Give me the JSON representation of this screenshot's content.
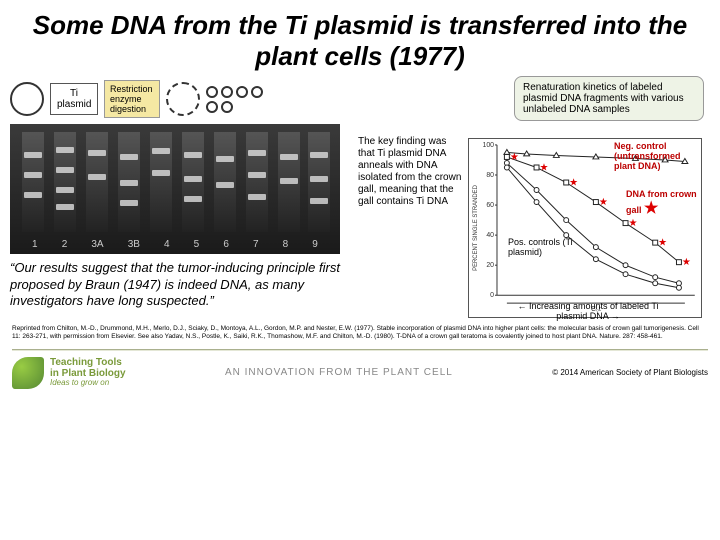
{
  "title": "Some DNA from the Ti plasmid is transferred into the plant cells (1977)",
  "left_panel": {
    "plasmid_label": "Ti plasmid",
    "restriction_label": "Restriction enzyme digestion",
    "gel": {
      "lane_labels": [
        "1",
        "2",
        "3A",
        "3B",
        "4",
        "5",
        "6",
        "7",
        "8",
        "9"
      ]
    },
    "quote": "“Our results suggest that the tumor-inducing principle first proposed by Braun (1947) is indeed DNA, as many investigators have long suspected.”"
  },
  "right_panel": {
    "renaturation_box": "Renaturation kinetics of labeled plasmid DNA fragments with various unlabeled DNA samples",
    "key_finding": "The key finding was that Ti plasmid DNA anneals with DNA isolated from the crown gall, meaning that the gall contains Ti DNA",
    "chart": {
      "type": "scatter-line",
      "ylabel": "PERCENT SINGLE STRANDED",
      "xlabel": "C₀t",
      "ylim": [
        0,
        100
      ],
      "ytick_step": 20,
      "series": [
        {
          "name": "neg_control",
          "points": [
            [
              0.05,
              95
            ],
            [
              0.15,
              94
            ],
            [
              0.3,
              93
            ],
            [
              0.5,
              92
            ],
            [
              0.7,
              91
            ],
            [
              0.85,
              90
            ],
            [
              0.95,
              89
            ]
          ],
          "color": "#222",
          "marker": "triangle"
        },
        {
          "name": "crown_gall",
          "points": [
            [
              0.05,
              92
            ],
            [
              0.2,
              85
            ],
            [
              0.35,
              75
            ],
            [
              0.5,
              62
            ],
            [
              0.65,
              48
            ],
            [
              0.8,
              35
            ],
            [
              0.92,
              22
            ]
          ],
          "color": "#222",
          "marker": "square",
          "star": true
        },
        {
          "name": "ti_a",
          "points": [
            [
              0.05,
              88
            ],
            [
              0.2,
              70
            ],
            [
              0.35,
              50
            ],
            [
              0.5,
              32
            ],
            [
              0.65,
              20
            ],
            [
              0.8,
              12
            ],
            [
              0.92,
              8
            ]
          ],
          "color": "#222",
          "marker": "circle"
        },
        {
          "name": "ti_b",
          "points": [
            [
              0.05,
              85
            ],
            [
              0.2,
              62
            ],
            [
              0.35,
              40
            ],
            [
              0.5,
              24
            ],
            [
              0.65,
              14
            ],
            [
              0.8,
              8
            ],
            [
              0.92,
              5
            ]
          ],
          "color": "#222",
          "marker": "circle"
        }
      ],
      "background_color": "#ffffff",
      "axis_color": "#333333",
      "tick_fontsize": 7
    },
    "neg_control_label": "Neg. control (untransformed plant DNA)",
    "dna_crown_gall_label": "DNA from crown gall",
    "pos_control_label": "Pos. controls (Ti plasmid)",
    "increasing_label": "Increasing amounts of labeled Ti plasmid DNA"
  },
  "citation": "Reprinted from Chilton, M.-D., Drummond, M.H., Merlo, D.J., Sciaky, D., Montoya, A.L., Gordon, M.P. and Nester, E.W. (1977). Stable incorporation of plasmid DNA into higher plant cells: the molecular basis of crown gall tumorigenesis. Cell 11: 263-271, with permission from Elsevier. See also Yadav, N.S., Postle, K., Saiki, R.K., Thomashow, M.F. and Chilton, M.-D. (1980). T-DNA of a crown gall teratoma is covalently joined to host plant DNA. Nature. 287: 458-461.",
  "footer": {
    "teaching_tools_line1": "Teaching Tools",
    "teaching_tools_line2": "in Plant Biology",
    "tagline": "Ideas to grow on",
    "innovation": "AN INNOVATION FROM THE PLANT CELL",
    "copyright": "© 2014 American Society of Plant Biologists"
  },
  "colors": {
    "highlight_red": "#bb0000",
    "box_green": "#eef3e6",
    "box_yellow": "#f5e8a3"
  }
}
